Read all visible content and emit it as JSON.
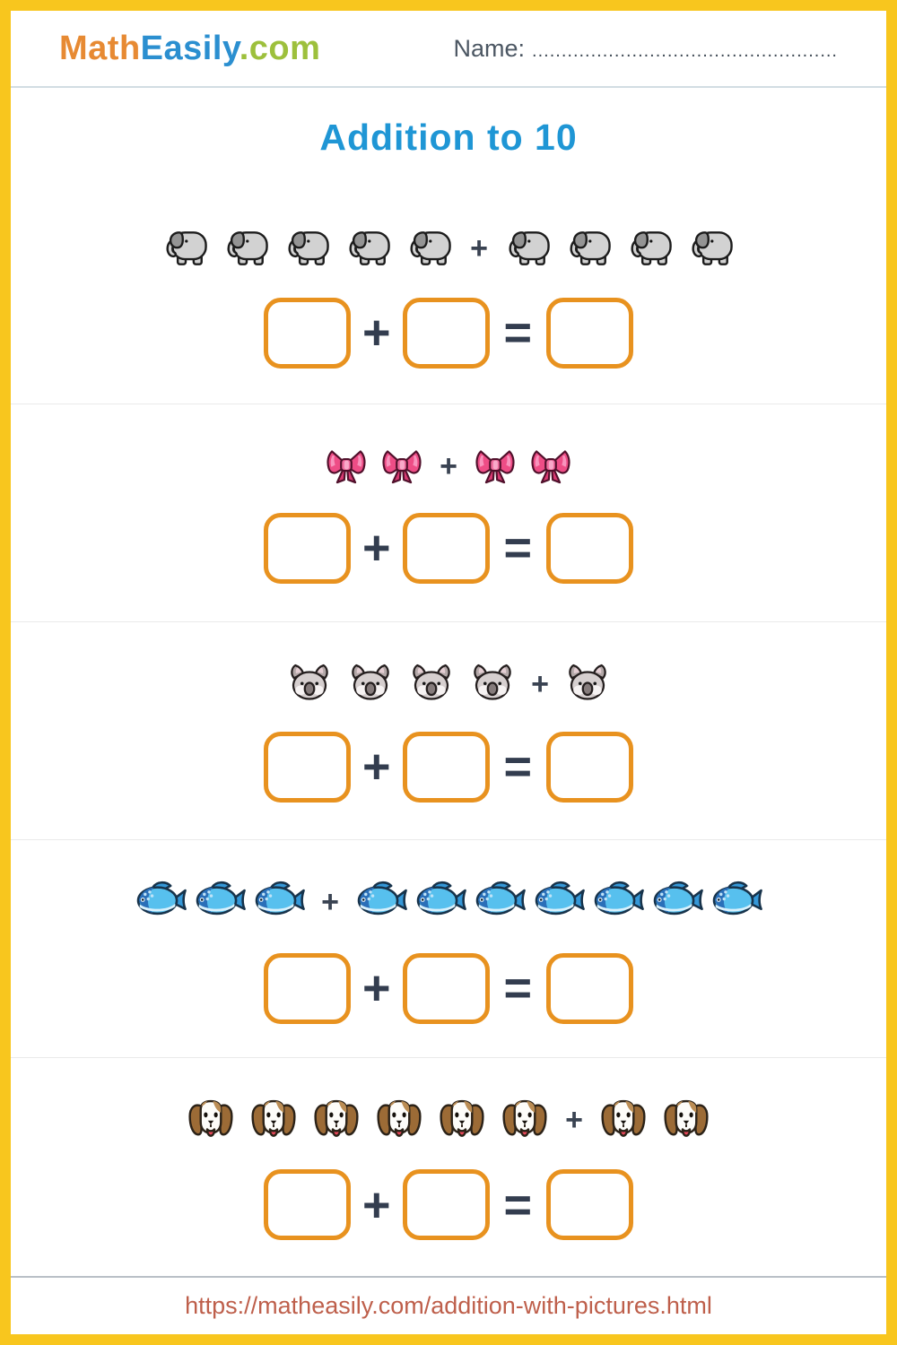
{
  "header": {
    "logo": {
      "math": "Math",
      "easily": "Easily",
      "com": ".com"
    },
    "name_label": "Name:",
    "name_line": "...................................................."
  },
  "title": "Addition to 10",
  "operators": {
    "plus": "+",
    "equals": "="
  },
  "problems": [
    {
      "icon": "elephant",
      "left_count": 5,
      "right_count": 4
    },
    {
      "icon": "ribbon",
      "left_count": 2,
      "right_count": 2
    },
    {
      "icon": "koala",
      "left_count": 4,
      "right_count": 1
    },
    {
      "icon": "fish",
      "left_count": 3,
      "right_count": 7
    },
    {
      "icon": "dog",
      "left_count": 6,
      "right_count": 2
    }
  ],
  "footer": {
    "url": "https://matheasily.com/addition-with-pictures.html"
  },
  "colors": {
    "page_border": "#F8C61E",
    "answer_box_border": "#E8921F",
    "operator": "#333D4F",
    "title": "#1F96D5",
    "footer_url": "#BE5F4B",
    "logo_math": "#E78A33",
    "logo_easily": "#2B8FD0",
    "logo_com": "#9DC03C",
    "name_text": "#4C5763"
  }
}
